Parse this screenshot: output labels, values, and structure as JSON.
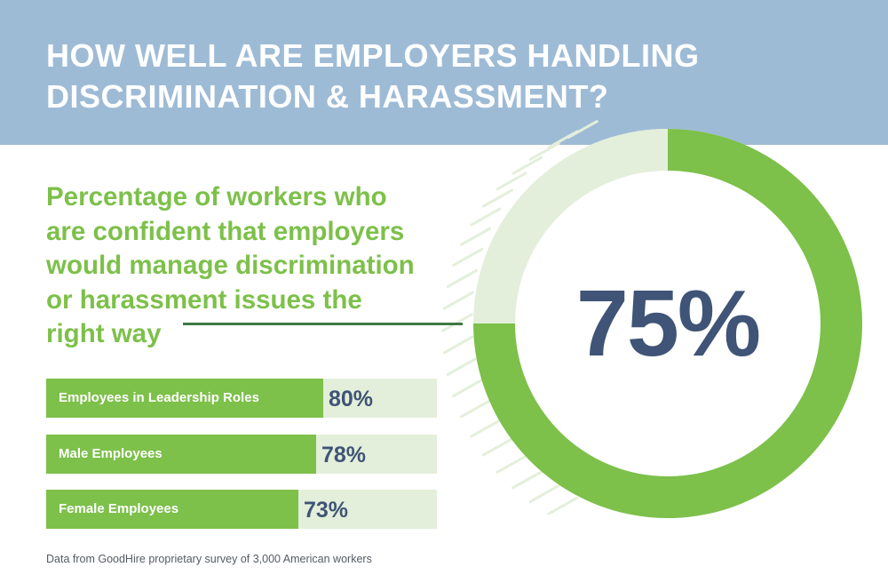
{
  "title_lines": [
    "HOW WELL ARE EMPLOYERS HANDLING",
    "DISCRIMINATION & HARASSMENT?"
  ],
  "subtitle_lines": [
    "Percentage of workers who",
    "are confident that employers",
    "would manage discrimination",
    "or harassment issues the",
    "right way"
  ],
  "source": "Data from GoodHire proprietary survey of 3,000 American workers",
  "colors": {
    "header_bg": "#9ebbd6",
    "green": "#7dc04a",
    "light_green": "#e3efda",
    "navy": "#3f5476",
    "dark_green_line": "#3f7a43"
  },
  "chart_data": [
    {
      "type": "pie",
      "subtype": "donut",
      "value": 75,
      "display": "75%",
      "slices": [
        {
          "value": 75,
          "color": "#7dc04a"
        },
        {
          "value": 25,
          "color": "#e3efda"
        }
      ]
    },
    {
      "type": "bar",
      "orientation": "horizontal",
      "categories": [
        "Employees in Leadership Roles",
        "Male Employees",
        "Female Employees"
      ],
      "values": [
        80,
        78,
        73
      ],
      "value_labels": [
        "80%",
        "78%",
        "73%"
      ],
      "xlim": [
        0,
        100
      ]
    }
  ]
}
